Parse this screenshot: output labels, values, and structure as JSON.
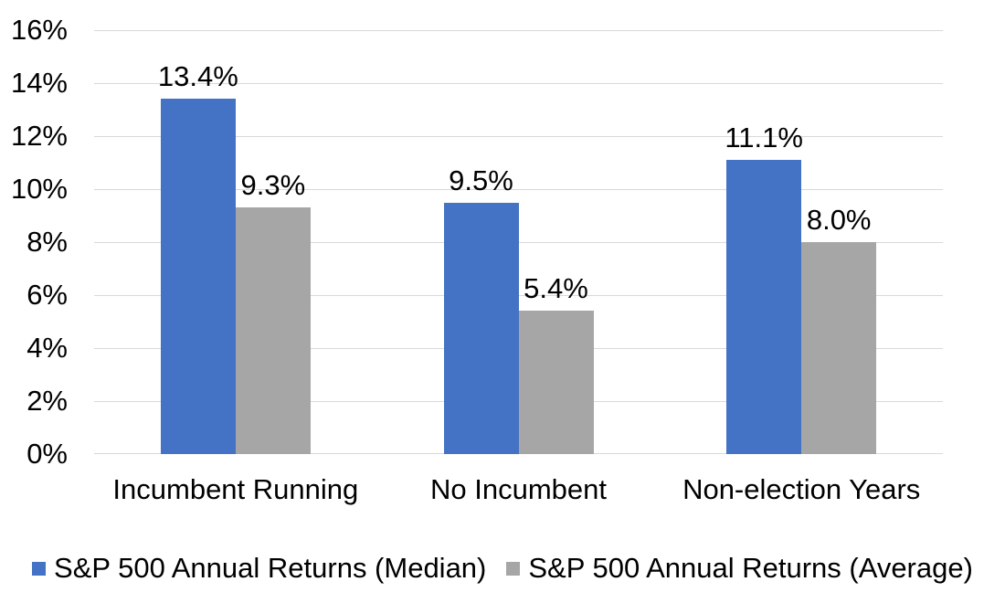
{
  "chart_data": {
    "type": "bar",
    "title": "",
    "categories": [
      "Incumbent Running",
      "No Incumbent",
      "Non-election Years"
    ],
    "series": [
      {
        "name": "S&P 500 Annual Returns (Median)",
        "color": "#4472C4",
        "values": [
          13.4,
          9.5,
          11.1
        ],
        "labels": [
          "13.4%",
          "9.5%",
          "11.1%"
        ]
      },
      {
        "name": "S&P 500 Annual Returns (Average)",
        "color": "#A6A6A6",
        "values": [
          9.3,
          5.4,
          8.0
        ],
        "labels": [
          "9.3%",
          "5.4%",
          "8.0%"
        ]
      }
    ],
    "ylim": [
      0,
      16
    ],
    "yticks": [
      "16%",
      "14%",
      "12%",
      "10%",
      "8%",
      "6%",
      "4%",
      "2%",
      "0%"
    ],
    "ytick_values": [
      16,
      14,
      12,
      10,
      8,
      6,
      4,
      2,
      0
    ],
    "grid": true,
    "legend_position": "bottom"
  },
  "legend": {
    "items": [
      {
        "label": "S&P 500 Annual Returns (Median)",
        "color": "#4472C4"
      },
      {
        "label": "S&P 500 Annual Returns (Average)",
        "color": "#A6A6A6"
      }
    ]
  },
  "colors": {
    "series_median": "#4472C4",
    "series_average": "#A6A6A6",
    "gridline": "#D9D9D9",
    "text": "#000000",
    "background": "#FFFFFF"
  }
}
